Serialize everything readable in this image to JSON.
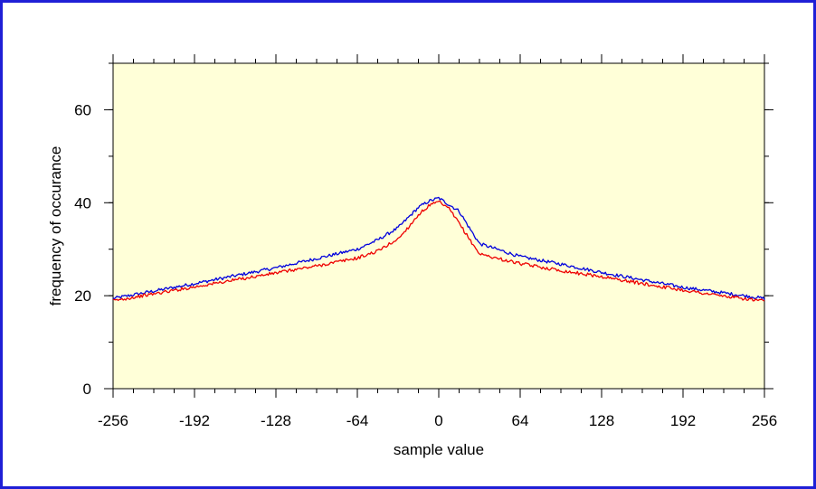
{
  "chart_data": {
    "type": "line",
    "title": "",
    "xlabel": "sample value",
    "ylabel": "frequency of occurance",
    "xlim": [
      -256,
      256
    ],
    "ylim": [
      0,
      70
    ],
    "x_ticks": [
      -256,
      -192,
      -128,
      -64,
      0,
      64,
      128,
      192,
      256
    ],
    "x_tick_labels": [
      "-256",
      "-192",
      "-128",
      "-64",
      "0",
      "64",
      "128",
      "192",
      "256"
    ],
    "y_ticks": [
      0,
      20,
      40,
      60
    ],
    "y_tick_labels": [
      "0",
      "20",
      "40",
      "60"
    ],
    "grid": false,
    "plot_background": "#ffffd8",
    "frame_color": "#1f1fd6",
    "series": [
      {
        "color": "#0000dd",
        "x": [
          -256,
          -224,
          -192,
          -160,
          -128,
          -96,
          -64,
          -48,
          -32,
          -24,
          -16,
          -8,
          0,
          8,
          16,
          24,
          32,
          48,
          64,
          96,
          128,
          160,
          192,
          224,
          256
        ],
        "values": [
          19.4,
          21.0,
          22.6,
          24.3,
          26.0,
          28.0,
          30.0,
          32.0,
          34.6,
          36.8,
          39.0,
          40.3,
          41.0,
          39.6,
          38.2,
          34.6,
          31.2,
          29.8,
          28.4,
          26.8,
          25.0,
          23.4,
          21.8,
          20.6,
          19.4
        ],
        "noise": 0.35
      },
      {
        "color": "#ee0000",
        "x": [
          -256,
          -224,
          -192,
          -160,
          -128,
          -96,
          -64,
          -48,
          -32,
          -24,
          -16,
          -8,
          0,
          8,
          16,
          24,
          32,
          48,
          64,
          96,
          128,
          160,
          192,
          224,
          256
        ],
        "values": [
          18.9,
          20.4,
          21.9,
          23.4,
          24.9,
          26.4,
          28.1,
          29.6,
          32.2,
          34.7,
          37.4,
          39.3,
          40.2,
          38.7,
          35.6,
          32.2,
          29.0,
          27.9,
          26.9,
          25.4,
          24.1,
          22.6,
          21.2,
          19.9,
          18.8
        ],
        "noise": 0.35
      }
    ]
  }
}
